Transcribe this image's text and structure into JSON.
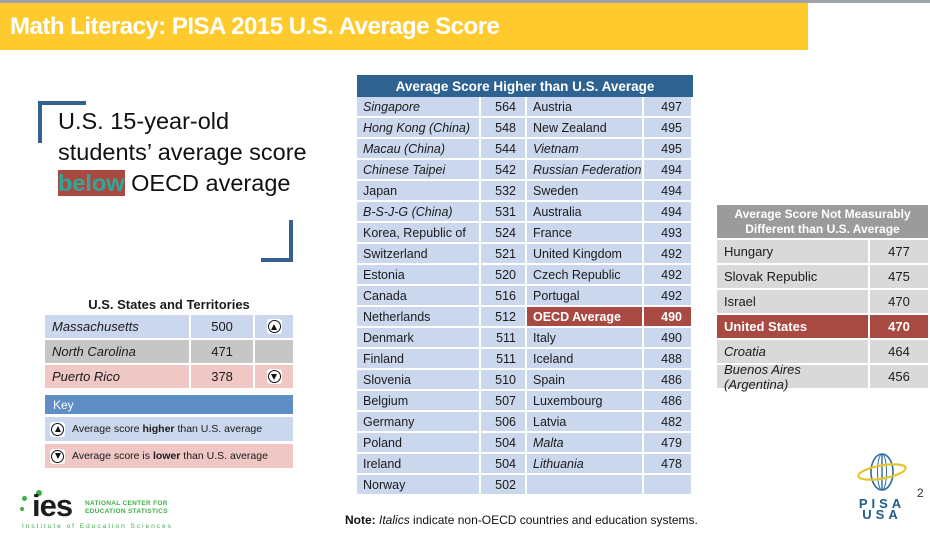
{
  "colors": {
    "title_bar_bg": "#ffca2e",
    "table_header_blue": "#2e6291",
    "row_blue": "#cad7ed",
    "highlight_red": "#a94a42",
    "key_header_blue": "#5f8dc6",
    "row_pink": "#efc7c5",
    "row_gray": "#d9d9d9",
    "nd_header_gray": "#9b9b9b",
    "accent_teal": "#2fa79a",
    "bracket_blue": "#36618e"
  },
  "header": {
    "title": "Math Literacy: PISA 2015 U.S. Average Score"
  },
  "callout": {
    "pre": "U.S. 15-year-old students’ average score ",
    "highlight": "below",
    "post": " OECD average"
  },
  "states_table": {
    "title": "U.S. States and Territories",
    "rows": [
      {
        "name": "Massachusetts",
        "score": "500",
        "indicator": "up",
        "tone": "blue"
      },
      {
        "name": "North Carolina",
        "score": "471",
        "indicator": "",
        "tone": "gray"
      },
      {
        "name": "Puerto Rico",
        "score": "378",
        "indicator": "down",
        "tone": "pink"
      }
    ]
  },
  "key": {
    "title": "Key",
    "items": [
      {
        "indicator": "up",
        "pre": "Average score ",
        "bold": "higher",
        "post": " than U.S. average",
        "tone": "blue"
      },
      {
        "indicator": "down",
        "pre": "Average score is ",
        "bold": "lower",
        "post": " than U.S. average",
        "tone": "pink"
      }
    ]
  },
  "higher_table": {
    "title": "Average Score Higher than U.S. Average",
    "rows": [
      {
        "left": {
          "name": "Singapore",
          "score": "564",
          "italic": true
        },
        "right": {
          "name": "Austria",
          "score": "497",
          "italic": false,
          "highlight": false
        }
      },
      {
        "left": {
          "name": "Hong Kong (China)",
          "score": "548",
          "italic": true
        },
        "right": {
          "name": "New Zealand",
          "score": "495",
          "italic": false,
          "highlight": false
        }
      },
      {
        "left": {
          "name": "Macau (China)",
          "score": "544",
          "italic": true
        },
        "right": {
          "name": "Vietnam",
          "score": "495",
          "italic": true,
          "highlight": false
        }
      },
      {
        "left": {
          "name": "Chinese Taipei",
          "score": "542",
          "italic": true
        },
        "right": {
          "name": "Russian Federation",
          "score": "494",
          "italic": true,
          "highlight": false
        }
      },
      {
        "left": {
          "name": "Japan",
          "score": "532",
          "italic": false
        },
        "right": {
          "name": "Sweden",
          "score": "494",
          "italic": false,
          "highlight": false
        }
      },
      {
        "left": {
          "name": "B-S-J-G (China)",
          "score": "531",
          "italic": true
        },
        "right": {
          "name": "Australia",
          "score": "494",
          "italic": false,
          "highlight": false
        }
      },
      {
        "left": {
          "name": "Korea, Republic of",
          "score": "524",
          "italic": false
        },
        "right": {
          "name": "France",
          "score": "493",
          "italic": false,
          "highlight": false
        }
      },
      {
        "left": {
          "name": "Switzerland",
          "score": "521",
          "italic": false
        },
        "right": {
          "name": "United Kingdom",
          "score": "492",
          "italic": false,
          "highlight": false
        }
      },
      {
        "left": {
          "name": "Estonia",
          "score": "520",
          "italic": false
        },
        "right": {
          "name": "Czech Republic",
          "score": "492",
          "italic": false,
          "highlight": false
        }
      },
      {
        "left": {
          "name": "Canada",
          "score": "516",
          "italic": false
        },
        "right": {
          "name": "Portugal",
          "score": "492",
          "italic": false,
          "highlight": false
        }
      },
      {
        "left": {
          "name": "Netherlands",
          "score": "512",
          "italic": false
        },
        "right": {
          "name": "OECD Average",
          "score": "490",
          "italic": false,
          "highlight": true
        }
      },
      {
        "left": {
          "name": "Denmark",
          "score": "511",
          "italic": false
        },
        "right": {
          "name": "Italy",
          "score": "490",
          "italic": false,
          "highlight": false
        }
      },
      {
        "left": {
          "name": "Finland",
          "score": "511",
          "italic": false
        },
        "right": {
          "name": "Iceland",
          "score": "488",
          "italic": false,
          "highlight": false
        }
      },
      {
        "left": {
          "name": "Slovenia",
          "score": "510",
          "italic": false
        },
        "right": {
          "name": "Spain",
          "score": "486",
          "italic": false,
          "highlight": false
        }
      },
      {
        "left": {
          "name": "Belgium",
          "score": "507",
          "italic": false
        },
        "right": {
          "name": "Luxembourg",
          "score": "486",
          "italic": false,
          "highlight": false
        }
      },
      {
        "left": {
          "name": "Germany",
          "score": "506",
          "italic": false
        },
        "right": {
          "name": "Latvia",
          "score": "482",
          "italic": false,
          "highlight": false
        }
      },
      {
        "left": {
          "name": "Poland",
          "score": "504",
          "italic": false
        },
        "right": {
          "name": "Malta",
          "score": "479",
          "italic": true,
          "highlight": false
        }
      },
      {
        "left": {
          "name": "Ireland",
          "score": "504",
          "italic": false
        },
        "right": {
          "name": "Lithuania",
          "score": "478",
          "italic": true,
          "highlight": false
        }
      },
      {
        "left": {
          "name": "Norway",
          "score": "502",
          "italic": false
        },
        "right": {
          "name": "",
          "score": "",
          "italic": false,
          "highlight": false
        }
      }
    ]
  },
  "not_different_table": {
    "title_line1": "Average Score Not Measurably",
    "title_line2": "Different than U.S. Average",
    "rows": [
      {
        "name": "Hungary",
        "score": "477",
        "italic": false,
        "highlight": false
      },
      {
        "name": "Slovak Republic",
        "score": "475",
        "italic": false,
        "highlight": false
      },
      {
        "name": "Israel",
        "score": "470",
        "italic": false,
        "highlight": false
      },
      {
        "name": "United States",
        "score": "470",
        "italic": false,
        "highlight": true
      },
      {
        "name": "Croatia",
        "score": "464",
        "italic": true,
        "highlight": false
      },
      {
        "name": "Buenos Aires (Argentina)",
        "score": "456",
        "italic": true,
        "highlight": false
      }
    ]
  },
  "footer": {
    "note_label": "Note:",
    "note_italic": "Italics",
    "note_rest": " indicate non-OECD countries and education systems.",
    "page_number": "2"
  },
  "logos": {
    "ies": {
      "word": "ies",
      "line1": "NATIONAL CENTER FOR",
      "line2": "EDUCATION STATISTICS",
      "line3": "Institute of Education Sciences"
    },
    "pisa": {
      "line1": "PISA",
      "line2": "USA"
    }
  }
}
